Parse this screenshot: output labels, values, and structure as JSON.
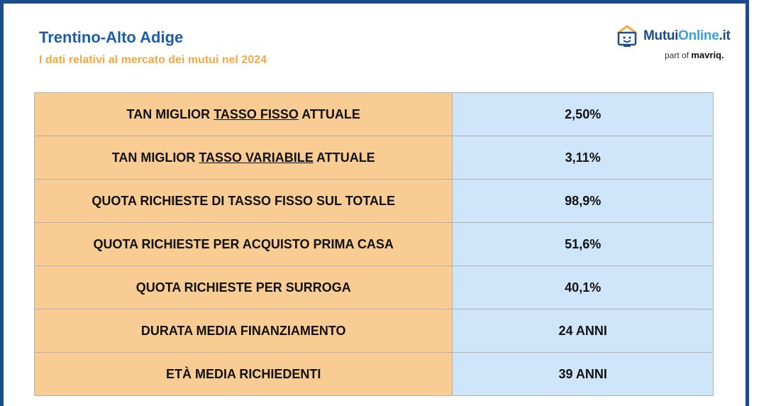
{
  "header": {
    "title": "Trentino-Alto Adige",
    "subtitle": "I dati relativi al mercato dei mutui nel 2024"
  },
  "logo": {
    "part1": "Mutui",
    "part2": "Online",
    "part3": ".it",
    "tagline_prefix": "part of ",
    "tagline_brand": "mavriq."
  },
  "rows": [
    {
      "label_pre": "TAN MIGLIOR ",
      "label_u": "TASSO FISSO",
      "label_post": " ATTUALE",
      "value": "2,50%"
    },
    {
      "label_pre": "TAN MIGLIOR ",
      "label_u": "TASSO VARIABILE",
      "label_post": " ATTUALE",
      "value": "3,11%"
    },
    {
      "label": "QUOTA RICHIESTE DI TASSO FISSO SUL TOTALE",
      "value": "98,9%"
    },
    {
      "label": "QUOTA RICHIESTE PER ACQUISTO PRIMA CASA",
      "value": "51,6%"
    },
    {
      "label": "QUOTA RICHIESTE PER SURROGA",
      "value": "40,1%"
    },
    {
      "label": "DURATA MEDIA FINANZIAMENTO",
      "value": "24 ANNI"
    },
    {
      "label": "ETÀ MEDIA RICHIEDENTI",
      "value": "39 ANNI"
    }
  ]
}
